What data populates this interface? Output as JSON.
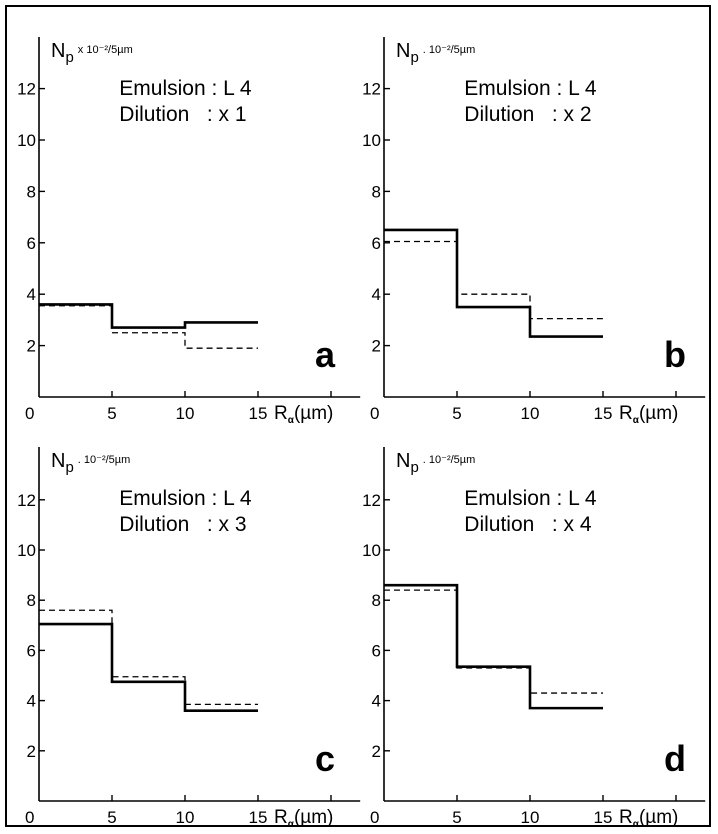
{
  "chart_data": [
    {
      "type": "line",
      "panel_label": "a",
      "ylabel": {
        "main": "N",
        "sub": "p",
        "unit": "x 10⁻²/5µm"
      },
      "xlabel": {
        "main": "R",
        "sub": "α",
        "unit": "(µm)"
      },
      "x_ticks": [
        "0",
        "5",
        "10",
        "15"
      ],
      "y_ticks": [
        "2",
        "4",
        "6",
        "8",
        "10",
        "12"
      ],
      "xlim": [
        0,
        22
      ],
      "ylim": [
        0,
        13.8
      ],
      "annotations": [
        "Emulsion : L 4",
        "Dilution   : x 1"
      ],
      "series": [
        {
          "style": "solid",
          "bin_edges": [
            0,
            5,
            10,
            15
          ],
          "values": [
            3.6,
            2.7,
            2.9
          ]
        },
        {
          "style": "dashed",
          "bin_edges": [
            0,
            5,
            10,
            15
          ],
          "values": [
            3.55,
            2.5,
            1.9
          ]
        }
      ]
    },
    {
      "type": "line",
      "panel_label": "b",
      "ylabel": {
        "main": "N",
        "sub": "p",
        "unit": ". 10⁻²/5µm"
      },
      "xlabel": {
        "main": "R",
        "sub": "α",
        "unit": "(µm)"
      },
      "x_ticks": [
        "0",
        "5",
        "10",
        "15"
      ],
      "y_ticks": [
        "2",
        "4",
        "6",
        "8",
        "10",
        "12"
      ],
      "xlim": [
        0,
        22
      ],
      "ylim": [
        0,
        13.8
      ],
      "annotations": [
        "Emulsion : L 4",
        "Dilution   : x 2"
      ],
      "series": [
        {
          "style": "solid",
          "bin_edges": [
            0,
            5,
            10,
            15
          ],
          "values": [
            6.5,
            3.5,
            2.35
          ]
        },
        {
          "style": "dashed",
          "bin_edges": [
            0,
            5,
            10,
            15
          ],
          "values": [
            6.05,
            4.0,
            3.05
          ]
        }
      ]
    },
    {
      "type": "line",
      "panel_label": "c",
      "ylabel": {
        "main": "N",
        "sub": "p",
        "unit": ". 10⁻²/5µm"
      },
      "xlabel": {
        "main": "R",
        "sub": "α",
        "unit": "(µm)"
      },
      "x_ticks": [
        "0",
        "5",
        "10",
        "15"
      ],
      "y_ticks": [
        "2",
        "4",
        "6",
        "8",
        "10",
        "12"
      ],
      "xlim": [
        0,
        22
      ],
      "ylim": [
        0,
        13.8
      ],
      "annotations": [
        "Emulsion : L 4",
        "Dilution   : x 3"
      ],
      "series": [
        {
          "style": "solid",
          "bin_edges": [
            0,
            5,
            10,
            15
          ],
          "values": [
            7.05,
            4.75,
            3.6
          ]
        },
        {
          "style": "dashed",
          "bin_edges": [
            0,
            5,
            10,
            15
          ],
          "values": [
            7.6,
            4.95,
            3.85
          ]
        }
      ]
    },
    {
      "type": "line",
      "panel_label": "d",
      "ylabel": {
        "main": "N",
        "sub": "p",
        "unit": ". 10⁻²/5µm"
      },
      "xlabel": {
        "main": "R",
        "sub": "α",
        "unit": "(µm)"
      },
      "x_ticks": [
        "0",
        "5",
        "10",
        "15"
      ],
      "y_ticks": [
        "2",
        "4",
        "6",
        "8",
        "10",
        "12"
      ],
      "xlim": [
        0,
        22
      ],
      "ylim": [
        0,
        13.8
      ],
      "annotations": [
        "Emulsion : L 4",
        "Dilution   : x 4"
      ],
      "series": [
        {
          "style": "solid",
          "bin_edges": [
            0,
            5,
            10,
            15
          ],
          "values": [
            8.6,
            5.35,
            3.7
          ]
        },
        {
          "style": "dashed",
          "bin_edges": [
            0,
            5,
            10,
            15
          ],
          "values": [
            8.4,
            5.3,
            4.3
          ]
        }
      ]
    }
  ]
}
